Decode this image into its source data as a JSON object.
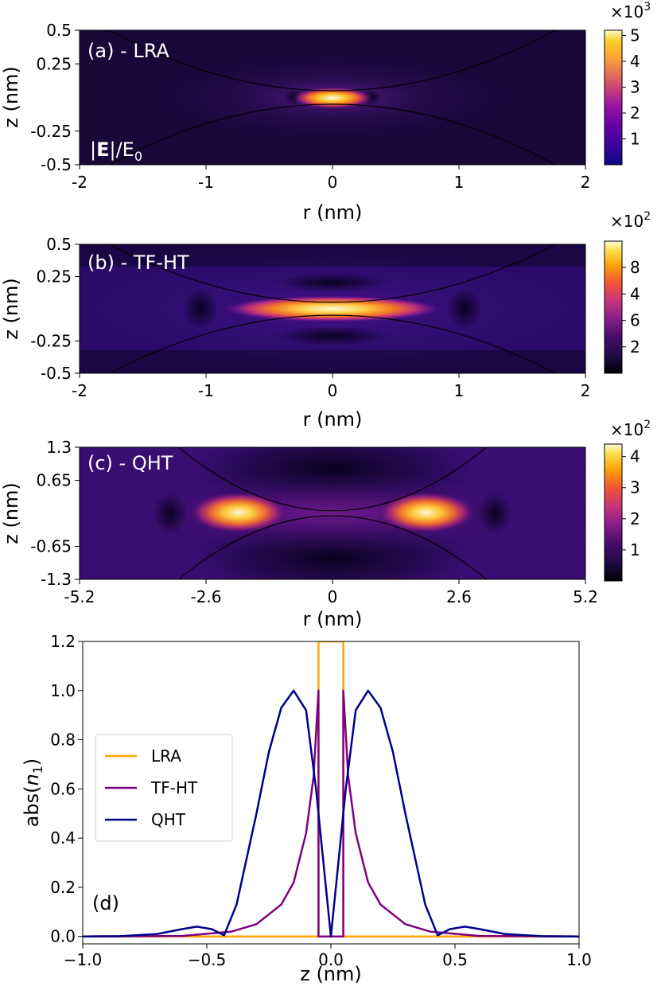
{
  "chart_data": [
    {
      "type": "heatmap",
      "panel_label": "(a) - LRA",
      "field_label": "|E|/E0",
      "field_label_parts": [
        "|",
        "E",
        "|/E",
        "0"
      ],
      "xlabel": "r (nm)",
      "ylabel": "z (nm)",
      "xlim": [
        -2,
        2
      ],
      "ylim": [
        -0.5,
        0.5
      ],
      "xticks": [
        "-2",
        "-1",
        "0",
        "1",
        "2"
      ],
      "xtick_values": [
        -2,
        -1,
        0,
        1,
        2
      ],
      "yticks": [
        "0.5",
        "0.25",
        "-0.25",
        "-0.5"
      ],
      "ytick_values": [
        0.5,
        0.25,
        -0.25,
        -0.5
      ],
      "gap_half_width_nm": 0.05,
      "surface_curvature": 0.145,
      "colormap": "plasma-like",
      "colorbar": {
        "scale_label": "×10",
        "scale_exp": "3",
        "ticks": [
          "1",
          "2",
          "3",
          "4",
          "5"
        ],
        "tick_values": [
          1,
          2,
          3,
          4,
          5
        ],
        "range": [
          0,
          5.2
        ]
      }
    },
    {
      "type": "heatmap",
      "panel_label": "(b) - TF-HT",
      "xlabel": "r (nm)",
      "ylabel": "z (nm)",
      "xlim": [
        -2,
        2
      ],
      "ylim": [
        -0.5,
        0.5
      ],
      "xticks": [
        "-2",
        "-1",
        "0",
        "1",
        "2"
      ],
      "xtick_values": [
        -2,
        -1,
        0,
        1,
        2
      ],
      "yticks": [
        "0.5",
        "0.25",
        "-0.25",
        "-0.5"
      ],
      "ytick_values": [
        0.5,
        0.25,
        -0.25,
        -0.5
      ],
      "gap_half_width_nm": 0.05,
      "surface_curvature": 0.145,
      "colormap": "plasma-like",
      "colorbar": {
        "scale_label": "×10",
        "scale_exp": "2",
        "ticks": [
          "2",
          "6",
          "4",
          "8"
        ],
        "tick_values": [
          2,
          4,
          6,
          8
        ],
        "range": [
          0,
          10
        ]
      }
    },
    {
      "type": "heatmap",
      "panel_label": "(c) - QHT",
      "xlabel": "r (nm)",
      "ylabel": "z (nm)",
      "xlim": [
        -5.2,
        5.2
      ],
      "ylim": [
        -1.3,
        1.3
      ],
      "xticks": [
        "-5.2",
        "-2.6",
        "0",
        "2.6",
        "5.2"
      ],
      "xtick_values": [
        -5.2,
        -2.6,
        0,
        2.6,
        5.2
      ],
      "yticks": [
        "1.3",
        "0.65",
        "-0.65",
        "-1.3"
      ],
      "ytick_values": [
        1.3,
        0.65,
        -0.65,
        -1.3
      ],
      "gap_half_width_nm": 0.05,
      "surface_curvature": 0.125,
      "colormap": "plasma-like",
      "colorbar": {
        "scale_label": "×10",
        "scale_exp": "2",
        "ticks": [
          "1",
          "2",
          "3",
          "4"
        ],
        "tick_values": [
          1,
          2,
          3,
          4
        ],
        "range": [
          0,
          4.4
        ]
      }
    },
    {
      "type": "line",
      "panel_label": "(d)",
      "xlabel": "z (nm)",
      "ylabel": "abs(n1)",
      "ylabel_parts": [
        "abs(",
        "n",
        "1",
        ")"
      ],
      "xlim": [
        -1.0,
        1.0
      ],
      "ylim": [
        -0.03,
        1.2
      ],
      "xticks": [
        "−1.0",
        "−0.5",
        "0.0",
        "0.5",
        "1.0"
      ],
      "xtick_values": [
        -1.0,
        -0.5,
        0.0,
        0.5,
        1.0
      ],
      "yticks": [
        "0.0",
        "0.2",
        "0.4",
        "0.6",
        "0.8",
        "1.0",
        "1.2"
      ],
      "ytick_values": [
        0.0,
        0.2,
        0.4,
        0.6,
        0.8,
        1.0,
        1.2
      ],
      "legend_position": "center-left",
      "series": [
        {
          "name": "LRA",
          "color": "#ffa500",
          "x": [
            -1.0,
            -0.05,
            -0.05,
            0.05,
            0.05,
            1.0
          ],
          "y": [
            0.0,
            0.0,
            1.2,
            1.2,
            0.0,
            0.0
          ]
        },
        {
          "name": "TF-HT",
          "color": "#800080",
          "x": [
            -1.0,
            -0.6,
            -0.4,
            -0.3,
            -0.2,
            -0.15,
            -0.1,
            -0.07,
            -0.05,
            -0.05,
            0.05,
            0.05,
            0.07,
            0.1,
            0.15,
            0.2,
            0.3,
            0.4,
            0.6,
            1.0
          ],
          "y": [
            0.0,
            0.002,
            0.02,
            0.05,
            0.13,
            0.22,
            0.42,
            0.65,
            1.0,
            0.0,
            0.0,
            1.0,
            0.65,
            0.42,
            0.22,
            0.13,
            0.05,
            0.02,
            0.002,
            0.0
          ]
        },
        {
          "name": "QHT",
          "color": "#00008b",
          "x": [
            -1.0,
            -0.85,
            -0.7,
            -0.6,
            -0.54,
            -0.48,
            -0.43,
            -0.38,
            -0.3,
            -0.25,
            -0.2,
            -0.15,
            -0.1,
            -0.06,
            -0.03,
            0.0,
            0.03,
            0.06,
            0.1,
            0.15,
            0.2,
            0.25,
            0.3,
            0.38,
            0.43,
            0.48,
            0.54,
            0.6,
            0.7,
            0.85,
            1.0
          ],
          "y": [
            0.0,
            0.001,
            0.01,
            0.03,
            0.04,
            0.03,
            0.005,
            0.13,
            0.5,
            0.75,
            0.93,
            1.0,
            0.92,
            0.6,
            0.3,
            0.0,
            0.3,
            0.6,
            0.92,
            1.0,
            0.93,
            0.75,
            0.5,
            0.13,
            0.005,
            0.03,
            0.04,
            0.03,
            0.01,
            0.001,
            0.0
          ]
        }
      ]
    }
  ]
}
